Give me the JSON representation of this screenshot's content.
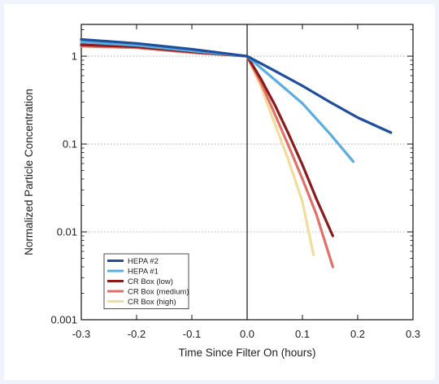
{
  "chart_data": {
    "type": "line",
    "title": "",
    "xlabel": "Time Since Filter On (hours)",
    "ylabel": "Normalized Particle Concentration",
    "xlim": [
      -0.3,
      0.3
    ],
    "ylim": [
      0.001,
      2.3
    ],
    "yscale": "log",
    "x_ticks": [
      -0.3,
      -0.2,
      -0.1,
      0.0,
      0.1,
      0.2,
      0.3
    ],
    "x_tick_labels": [
      "-0.3",
      "-0.2",
      "-0.1",
      "0.0",
      "0.1",
      "0.2",
      "0.3"
    ],
    "y_ticks": [
      0.001,
      0.01,
      0.1,
      1
    ],
    "y_tick_labels": [
      "0.001",
      "0.01",
      "0.1",
      "1"
    ],
    "vline_x": 0.0,
    "grid": "horizontal dotted at decades",
    "legend_position": "bottom-left",
    "series": [
      {
        "name": "HEPA #2",
        "color": "#1f4e9c",
        "x": [
          -0.3,
          -0.2,
          -0.1,
          0.0,
          0.05,
          0.1,
          0.15,
          0.2,
          0.26
        ],
        "y": [
          1.55,
          1.4,
          1.2,
          1.0,
          0.68,
          0.46,
          0.3,
          0.2,
          0.135
        ]
      },
      {
        "name": "HEPA #1",
        "color": "#5aaee0",
        "x": [
          -0.3,
          -0.2,
          -0.1,
          0.0,
          0.05,
          0.1,
          0.15,
          0.192
        ],
        "y": [
          1.45,
          1.33,
          1.15,
          1.0,
          0.54,
          0.29,
          0.13,
          0.063
        ]
      },
      {
        "name": "CR Box (low)",
        "color": "#8b1a1a",
        "x": [
          -0.3,
          -0.2,
          -0.1,
          0.0,
          0.025,
          0.05,
          0.075,
          0.1,
          0.125,
          0.155
        ],
        "y": [
          1.35,
          1.28,
          1.12,
          1.0,
          0.55,
          0.28,
          0.13,
          0.058,
          0.024,
          0.009
        ]
      },
      {
        "name": "CR Box (medium)",
        "color": "#e07068",
        "x": [
          -0.3,
          -0.2,
          -0.1,
          0.0,
          0.025,
          0.05,
          0.075,
          0.1,
          0.125,
          0.155
        ],
        "y": [
          1.3,
          1.25,
          1.1,
          1.0,
          0.5,
          0.22,
          0.095,
          0.04,
          0.016,
          0.004
        ]
      },
      {
        "name": "CR Box (high)",
        "color": "#f3dc9a",
        "x": [
          -0.3,
          -0.2,
          -0.1,
          0.0,
          0.025,
          0.05,
          0.075,
          0.1,
          0.12
        ],
        "y": [
          1.3,
          1.25,
          1.1,
          1.0,
          0.45,
          0.17,
          0.065,
          0.022,
          0.0055
        ]
      }
    ]
  }
}
